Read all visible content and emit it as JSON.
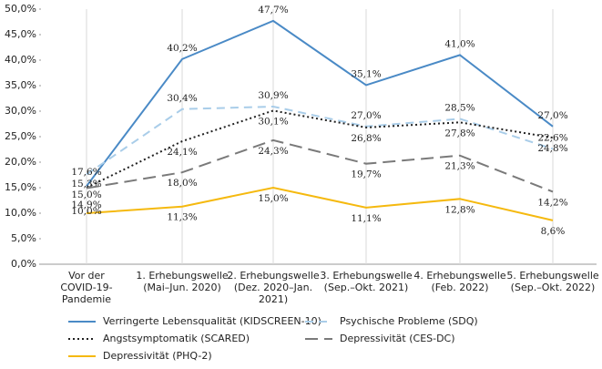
{
  "chart_data": {
    "type": "line",
    "categories": [
      "Vor der\nCOVID-19-\nPandemie",
      "1. Erhebungswelle\n(Mai–Jun. 2020)",
      "2. Erhebungswelle\n(Dez. 2020–Jan.\n2021)",
      "3. Erhebungswelle\n(Sep.–Okt. 2021)",
      "4. Erhebungswelle\n(Feb. 2022)",
      "5. Erhebungswelle\n(Sep.–Okt. 2022)"
    ],
    "ylim": [
      0,
      50
    ],
    "yticks": [
      {
        "value": 0,
        "label": "0,0%"
      },
      {
        "value": 5,
        "label": "5,0%"
      },
      {
        "value": 10,
        "label": "10,0%"
      },
      {
        "value": 15,
        "label": "15,0%"
      },
      {
        "value": 20,
        "label": "20,0%"
      },
      {
        "value": 25,
        "label": "25,0%"
      },
      {
        "value": 30,
        "label": "30,0%"
      },
      {
        "value": 35,
        "label": "35,0%"
      },
      {
        "value": 40,
        "label": "40,0%"
      },
      {
        "value": 45,
        "label": "45,0%"
      },
      {
        "value": 50,
        "label": "50,0%"
      }
    ],
    "grid": "x",
    "series": [
      {
        "name": "Verringerte Lebensqualität (KIDSCREEN-10)",
        "color": "#4a8ac6",
        "dash": "solid",
        "values": [
          15.3,
          40.2,
          47.7,
          35.1,
          41.0,
          27.0
        ],
        "value_labels": [
          "15,3%",
          "40,2%",
          "47,7%",
          "35,1%",
          "41,0%",
          "27,0%"
        ]
      },
      {
        "name": "Psychische Probleme (SDQ)",
        "color": "#a9cde9",
        "dash": "dashed",
        "values": [
          17.6,
          30.4,
          30.9,
          27.0,
          28.5,
          22.6
        ],
        "value_labels": [
          "17,6%",
          "30,4%",
          "30,9%",
          "27,0%",
          "28,5%",
          "22,6%"
        ]
      },
      {
        "name": "Angstsymptomatik (SCARED)",
        "color": "#222222",
        "dash": "dotted",
        "values": [
          15.0,
          24.1,
          30.1,
          26.8,
          27.8,
          24.8
        ],
        "value_labels": [
          "15,0%",
          "24,1%",
          "30,1%",
          "26,8%",
          "27,8%",
          "24,8%"
        ]
      },
      {
        "name": "Depressivität (CES-DC)",
        "color": "#7a7a7a",
        "dash": "longdash",
        "values": [
          14.9,
          18.0,
          24.3,
          19.7,
          21.3,
          14.2
        ],
        "value_labels": [
          "14,9%",
          "18,0%",
          "24,3%",
          "19,7%",
          "21,3%",
          "14,2%"
        ]
      },
      {
        "name": "Depressivität (PHQ-2)",
        "color": "#f5b90f",
        "dash": "solid",
        "values": [
          10.0,
          11.3,
          15.0,
          11.1,
          12.8,
          8.6
        ],
        "value_labels": [
          "10,0%",
          "11,3%",
          "15,0%",
          "11,1%",
          "12,8%",
          "8,6%"
        ]
      }
    ]
  }
}
